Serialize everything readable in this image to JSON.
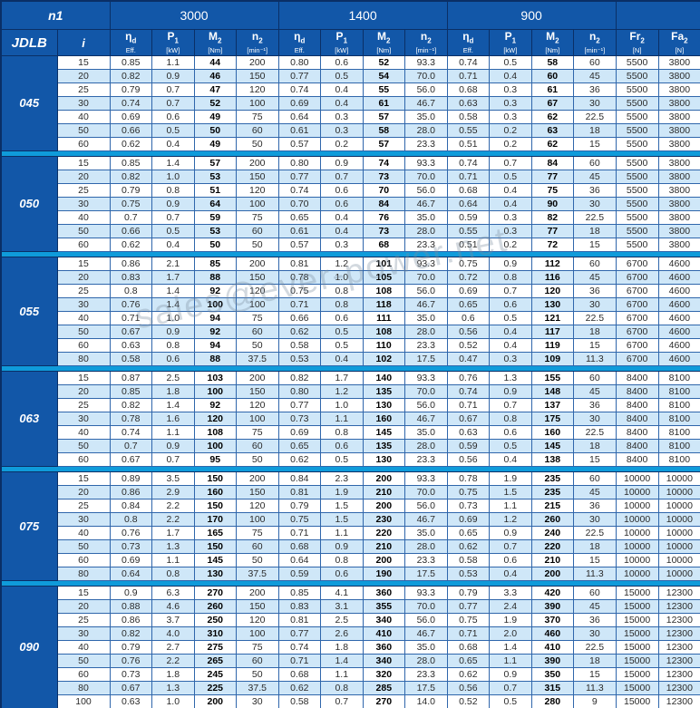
{
  "header": {
    "n1_label": "n1",
    "jdlb_label": "JDLB",
    "i_label": "i",
    "speeds": [
      "3000",
      "1400",
      "900"
    ],
    "measure_headers": [
      {
        "symbol": "η",
        "subscript": "d",
        "unit": "Eff."
      },
      {
        "symbol": "P",
        "subscript": "1",
        "unit": "[kW]"
      },
      {
        "symbol": "M",
        "subscript": "2",
        "unit": "[Nm]"
      },
      {
        "symbol": "n",
        "subscript": "2",
        "unit": "[min⁻¹]"
      }
    ],
    "load_headers": [
      {
        "symbol": "Fr",
        "subscript": "2",
        "unit": "[N]"
      },
      {
        "symbol": "Fa",
        "subscript": "2",
        "unit": "[N]"
      }
    ]
  },
  "watermark": "sales@ever-power.net",
  "colors": {
    "header_blue": "#1257a8",
    "row_alt_blue": "#cfe7f8",
    "separator_blue": "#0f9bda",
    "grid_blue": "#2f66ab",
    "dark_border": "#0a2f66"
  },
  "groups": [
    {
      "model": "045",
      "fr2": "5500",
      "fa2": "3800",
      "rows": [
        {
          "i": "15",
          "s3000": [
            "0.85",
            "1.1",
            "44",
            "200"
          ],
          "s1400": [
            "0.80",
            "0.6",
            "52",
            "93.3"
          ],
          "s900": [
            "0.74",
            "0.5",
            "58",
            "60"
          ]
        },
        {
          "i": "20",
          "s3000": [
            "0.82",
            "0.9",
            "46",
            "150"
          ],
          "s1400": [
            "0.77",
            "0.5",
            "54",
            "70.0"
          ],
          "s900": [
            "0.71",
            "0.4",
            "60",
            "45"
          ]
        },
        {
          "i": "25",
          "s3000": [
            "0.79",
            "0.7",
            "47",
            "120"
          ],
          "s1400": [
            "0.74",
            "0.4",
            "55",
            "56.0"
          ],
          "s900": [
            "0.68",
            "0.3",
            "61",
            "36"
          ]
        },
        {
          "i": "30",
          "s3000": [
            "0.74",
            "0.7",
            "52",
            "100"
          ],
          "s1400": [
            "0.69",
            "0.4",
            "61",
            "46.7"
          ],
          "s900": [
            "0.63",
            "0.3",
            "67",
            "30"
          ]
        },
        {
          "i": "40",
          "s3000": [
            "0.69",
            "0.6",
            "49",
            "75"
          ],
          "s1400": [
            "0.64",
            "0.3",
            "57",
            "35.0"
          ],
          "s900": [
            "0.58",
            "0.3",
            "62",
            "22.5"
          ]
        },
        {
          "i": "50",
          "s3000": [
            "0.66",
            "0.5",
            "50",
            "60"
          ],
          "s1400": [
            "0.61",
            "0.3",
            "58",
            "28.0"
          ],
          "s900": [
            "0.55",
            "0.2",
            "63",
            "18"
          ]
        },
        {
          "i": "60",
          "s3000": [
            "0.62",
            "0.4",
            "49",
            "50"
          ],
          "s1400": [
            "0.57",
            "0.2",
            "57",
            "23.3"
          ],
          "s900": [
            "0.51",
            "0.2",
            "62",
            "15"
          ]
        }
      ]
    },
    {
      "model": "050",
      "fr2": "5500",
      "fa2": "3800",
      "rows": [
        {
          "i": "15",
          "s3000": [
            "0.85",
            "1.4",
            "57",
            "200"
          ],
          "s1400": [
            "0.80",
            "0.9",
            "74",
            "93.3"
          ],
          "s900": [
            "0.74",
            "0.7",
            "84",
            "60"
          ]
        },
        {
          "i": "20",
          "s3000": [
            "0.82",
            "1.0",
            "53",
            "150"
          ],
          "s1400": [
            "0.77",
            "0.7",
            "73",
            "70.0"
          ],
          "s900": [
            "0.71",
            "0.5",
            "77",
            "45"
          ]
        },
        {
          "i": "25",
          "s3000": [
            "0.79",
            "0.8",
            "51",
            "120"
          ],
          "s1400": [
            "0.74",
            "0.6",
            "70",
            "56.0"
          ],
          "s900": [
            "0.68",
            "0.4",
            "75",
            "36"
          ]
        },
        {
          "i": "30",
          "s3000": [
            "0.75",
            "0.9",
            "64",
            "100"
          ],
          "s1400": [
            "0.70",
            "0.6",
            "84",
            "46.7"
          ],
          "s900": [
            "0.64",
            "0.4",
            "90",
            "30"
          ]
        },
        {
          "i": "40",
          "s3000": [
            "0.7",
            "0.7",
            "59",
            "75"
          ],
          "s1400": [
            "0.65",
            "0.4",
            "76",
            "35.0"
          ],
          "s900": [
            "0.59",
            "0.3",
            "82",
            "22.5"
          ]
        },
        {
          "i": "50",
          "s3000": [
            "0.66",
            "0.5",
            "53",
            "60"
          ],
          "s1400": [
            "0.61",
            "0.4",
            "73",
            "28.0"
          ],
          "s900": [
            "0.55",
            "0.3",
            "77",
            "18"
          ]
        },
        {
          "i": "60",
          "s3000": [
            "0.62",
            "0.4",
            "50",
            "50"
          ],
          "s1400": [
            "0.57",
            "0.3",
            "68",
            "23.3"
          ],
          "s900": [
            "0.51",
            "0.2",
            "72",
            "15"
          ]
        }
      ]
    },
    {
      "model": "055",
      "fr2": "6700",
      "fa2": "4600",
      "rows": [
        {
          "i": "15",
          "s3000": [
            "0.86",
            "2.1",
            "85",
            "200"
          ],
          "s1400": [
            "0.81",
            "1.2",
            "101",
            "93.3"
          ],
          "s900": [
            "0.75",
            "0.9",
            "112",
            "60"
          ]
        },
        {
          "i": "20",
          "s3000": [
            "0.83",
            "1.7",
            "88",
            "150"
          ],
          "s1400": [
            "0.78",
            "1.0",
            "105",
            "70.0"
          ],
          "s900": [
            "0.72",
            "0.8",
            "116",
            "45"
          ]
        },
        {
          "i": "25",
          "s3000": [
            "0.8",
            "1.4",
            "92",
            "120"
          ],
          "s1400": [
            "0.75",
            "0.8",
            "108",
            "56.0"
          ],
          "s900": [
            "0.69",
            "0.7",
            "120",
            "36"
          ]
        },
        {
          "i": "30",
          "s3000": [
            "0.76",
            "1.4",
            "100",
            "100"
          ],
          "s1400": [
            "0.71",
            "0.8",
            "118",
            "46.7"
          ],
          "s900": [
            "0.65",
            "0.6",
            "130",
            "30"
          ]
        },
        {
          "i": "40",
          "s3000": [
            "0.71",
            "1.0",
            "94",
            "75"
          ],
          "s1400": [
            "0.66",
            "0.6",
            "111",
            "35.0"
          ],
          "s900": [
            "0.6",
            "0.5",
            "121",
            "22.5"
          ]
        },
        {
          "i": "50",
          "s3000": [
            "0.67",
            "0.9",
            "92",
            "60"
          ],
          "s1400": [
            "0.62",
            "0.5",
            "108",
            "28.0"
          ],
          "s900": [
            "0.56",
            "0.4",
            "117",
            "18"
          ]
        },
        {
          "i": "60",
          "s3000": [
            "0.63",
            "0.8",
            "94",
            "50"
          ],
          "s1400": [
            "0.58",
            "0.5",
            "110",
            "23.3"
          ],
          "s900": [
            "0.52",
            "0.4",
            "119",
            "15"
          ]
        },
        {
          "i": "80",
          "s3000": [
            "0.58",
            "0.6",
            "88",
            "37.5"
          ],
          "s1400": [
            "0.53",
            "0.4",
            "102",
            "17.5"
          ],
          "s900": [
            "0.47",
            "0.3",
            "109",
            "11.3"
          ]
        }
      ]
    },
    {
      "model": "063",
      "fr2": "8400",
      "fa2": "8100",
      "rows": [
        {
          "i": "15",
          "s3000": [
            "0.87",
            "2.5",
            "103",
            "200"
          ],
          "s1400": [
            "0.82",
            "1.7",
            "140",
            "93.3"
          ],
          "s900": [
            "0.76",
            "1.3",
            "155",
            "60"
          ]
        },
        {
          "i": "20",
          "s3000": [
            "0.85",
            "1.8",
            "100",
            "150"
          ],
          "s1400": [
            "0.80",
            "1.2",
            "135",
            "70.0"
          ],
          "s900": [
            "0.74",
            "0.9",
            "148",
            "45"
          ]
        },
        {
          "i": "25",
          "s3000": [
            "0.82",
            "1.4",
            "92",
            "120"
          ],
          "s1400": [
            "0.77",
            "1.0",
            "130",
            "56.0"
          ],
          "s900": [
            "0.71",
            "0.7",
            "137",
            "36"
          ]
        },
        {
          "i": "30",
          "s3000": [
            "0.78",
            "1.6",
            "120",
            "100"
          ],
          "s1400": [
            "0.73",
            "1.1",
            "160",
            "46.7"
          ],
          "s900": [
            "0.67",
            "0.8",
            "175",
            "30"
          ]
        },
        {
          "i": "40",
          "s3000": [
            "0.74",
            "1.1",
            "108",
            "75"
          ],
          "s1400": [
            "0.69",
            "0.8",
            "145",
            "35.0"
          ],
          "s900": [
            "0.63",
            "0.6",
            "160",
            "22.5"
          ]
        },
        {
          "i": "50",
          "s3000": [
            "0.7",
            "0.9",
            "100",
            "60"
          ],
          "s1400": [
            "0.65",
            "0.6",
            "135",
            "28.0"
          ],
          "s900": [
            "0.59",
            "0.5",
            "145",
            "18"
          ]
        },
        {
          "i": "60",
          "s3000": [
            "0.67",
            "0.7",
            "95",
            "50"
          ],
          "s1400": [
            "0.62",
            "0.5",
            "130",
            "23.3"
          ],
          "s900": [
            "0.56",
            "0.4",
            "138",
            "15"
          ]
        }
      ]
    },
    {
      "model": "075",
      "fr2": "10000",
      "fa2": "10000",
      "rows": [
        {
          "i": "15",
          "s3000": [
            "0.89",
            "3.5",
            "150",
            "200"
          ],
          "s1400": [
            "0.84",
            "2.3",
            "200",
            "93.3"
          ],
          "s900": [
            "0.78",
            "1.9",
            "235",
            "60"
          ]
        },
        {
          "i": "20",
          "s3000": [
            "0.86",
            "2.9",
            "160",
            "150"
          ],
          "s1400": [
            "0.81",
            "1.9",
            "210",
            "70.0"
          ],
          "s900": [
            "0.75",
            "1.5",
            "235",
            "45"
          ]
        },
        {
          "i": "25",
          "s3000": [
            "0.84",
            "2.2",
            "150",
            "120"
          ],
          "s1400": [
            "0.79",
            "1.5",
            "200",
            "56.0"
          ],
          "s900": [
            "0.73",
            "1.1",
            "215",
            "36"
          ]
        },
        {
          "i": "30",
          "s3000": [
            "0.8",
            "2.2",
            "170",
            "100"
          ],
          "s1400": [
            "0.75",
            "1.5",
            "230",
            "46.7"
          ],
          "s900": [
            "0.69",
            "1.2",
            "260",
            "30"
          ]
        },
        {
          "i": "40",
          "s3000": [
            "0.76",
            "1.7",
            "165",
            "75"
          ],
          "s1400": [
            "0.71",
            "1.1",
            "220",
            "35.0"
          ],
          "s900": [
            "0.65",
            "0.9",
            "240",
            "22.5"
          ]
        },
        {
          "i": "50",
          "s3000": [
            "0.73",
            "1.3",
            "150",
            "60"
          ],
          "s1400": [
            "0.68",
            "0.9",
            "210",
            "28.0"
          ],
          "s900": [
            "0.62",
            "0.7",
            "220",
            "18"
          ]
        },
        {
          "i": "60",
          "s3000": [
            "0.69",
            "1.1",
            "145",
            "50"
          ],
          "s1400": [
            "0.64",
            "0.8",
            "200",
            "23.3"
          ],
          "s900": [
            "0.58",
            "0.6",
            "210",
            "15"
          ]
        },
        {
          "i": "80",
          "s3000": [
            "0.64",
            "0.8",
            "130",
            "37.5"
          ],
          "s1400": [
            "0.59",
            "0.6",
            "190",
            "17.5"
          ],
          "s900": [
            "0.53",
            "0.4",
            "200",
            "11.3"
          ]
        }
      ]
    },
    {
      "model": "090",
      "fr2": "15000",
      "fa2": "12300",
      "rows": [
        {
          "i": "15",
          "s3000": [
            "0.9",
            "6.3",
            "270",
            "200"
          ],
          "s1400": [
            "0.85",
            "4.1",
            "360",
            "93.3"
          ],
          "s900": [
            "0.79",
            "3.3",
            "420",
            "60"
          ]
        },
        {
          "i": "20",
          "s3000": [
            "0.88",
            "4.6",
            "260",
            "150"
          ],
          "s1400": [
            "0.83",
            "3.1",
            "355",
            "70.0"
          ],
          "s900": [
            "0.77",
            "2.4",
            "390",
            "45"
          ]
        },
        {
          "i": "25",
          "s3000": [
            "0.86",
            "3.7",
            "250",
            "120"
          ],
          "s1400": [
            "0.81",
            "2.5",
            "340",
            "56.0"
          ],
          "s900": [
            "0.75",
            "1.9",
            "370",
            "36"
          ]
        },
        {
          "i": "30",
          "s3000": [
            "0.82",
            "4.0",
            "310",
            "100"
          ],
          "s1400": [
            "0.77",
            "2.6",
            "410",
            "46.7"
          ],
          "s900": [
            "0.71",
            "2.0",
            "460",
            "30"
          ]
        },
        {
          "i": "40",
          "s3000": [
            "0.79",
            "2.7",
            "275",
            "75"
          ],
          "s1400": [
            "0.74",
            "1.8",
            "360",
            "35.0"
          ],
          "s900": [
            "0.68",
            "1.4",
            "410",
            "22.5"
          ]
        },
        {
          "i": "50",
          "s3000": [
            "0.76",
            "2.2",
            "265",
            "60"
          ],
          "s1400": [
            "0.71",
            "1.4",
            "340",
            "28.0"
          ],
          "s900": [
            "0.65",
            "1.1",
            "390",
            "18"
          ]
        },
        {
          "i": "60",
          "s3000": [
            "0.73",
            "1.8",
            "245",
            "50"
          ],
          "s1400": [
            "0.68",
            "1.1",
            "320",
            "23.3"
          ],
          "s900": [
            "0.62",
            "0.9",
            "350",
            "15"
          ]
        },
        {
          "i": "80",
          "s3000": [
            "0.67",
            "1.3",
            "225",
            "37.5"
          ],
          "s1400": [
            "0.62",
            "0.8",
            "285",
            "17.5"
          ],
          "s900": [
            "0.56",
            "0.7",
            "315",
            "11.3"
          ]
        },
        {
          "i": "100",
          "s3000": [
            "0.63",
            "1.0",
            "200",
            "30"
          ],
          "s1400": [
            "0.58",
            "0.7",
            "270",
            "14.0"
          ],
          "s900": [
            "0.52",
            "0.5",
            "280",
            "9"
          ]
        }
      ]
    }
  ]
}
